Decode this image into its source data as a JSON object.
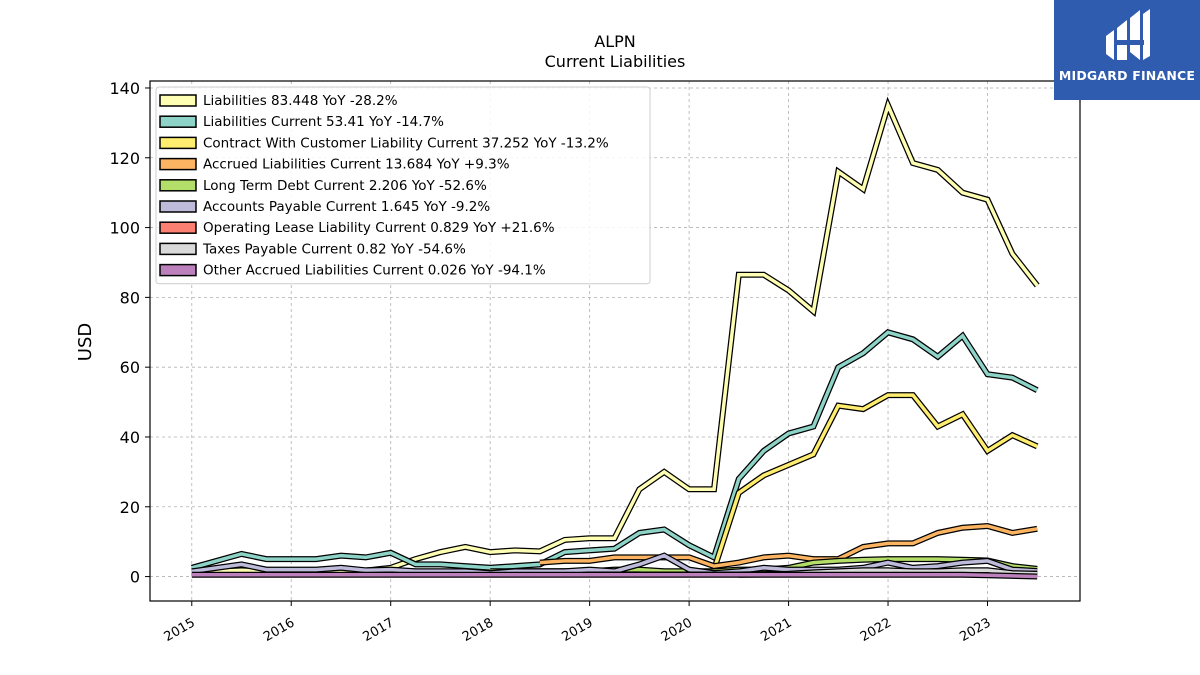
{
  "brand": {
    "name": "MIDGARD FINANCE"
  },
  "chart_data": {
    "type": "line",
    "title": "ALPN",
    "subtitle": "Current  Liabilities",
    "ylabel": "USD",
    "xlabel": "",
    "ylim": [
      -7,
      142
    ],
    "xlim": [
      2014.58,
      2023.93
    ],
    "yticks": [
      0,
      20,
      40,
      60,
      80,
      100,
      120,
      140
    ],
    "xticks": [
      2015,
      2016,
      2017,
      2018,
      2019,
      2020,
      2021,
      2022,
      2023
    ],
    "grid": true,
    "legend_position": "top-left",
    "x": [
      2015.0,
      2015.5,
      2015.75,
      2016.25,
      2016.5,
      2016.75,
      2017.0,
      2017.25,
      2017.5,
      2017.75,
      2018.0,
      2018.25,
      2018.5,
      2018.75,
      2019.0,
      2019.25,
      2019.5,
      2019.75,
      2020.0,
      2020.25,
      2020.5,
      2020.75,
      2021.0,
      2021.25,
      2021.5,
      2021.75,
      2022.0,
      2022.25,
      2022.5,
      2022.75,
      2023.0,
      2023.25,
      2023.5
    ],
    "series": [
      {
        "name": "Liabilities  83.448 YoY -28.2%",
        "color": "#ffffb3",
        "values": [
          1.2,
          1.8,
          1.5,
          1.6,
          1.8,
          1.7,
          2.5,
          5.0,
          7.0,
          8.5,
          7.0,
          7.5,
          7.2,
          10.5,
          11.0,
          11.0,
          25.0,
          30.0,
          25.0,
          25.0,
          86.5,
          86.5,
          82.0,
          76.0,
          116.0,
          111.0,
          135.0,
          118.5,
          116.5,
          110.0,
          108.0,
          92.5,
          83.4
        ]
      },
      {
        "name": "Liabilities Current  53.41 YoY -14.7%",
        "color": "#8dd3c7",
        "values": [
          2.5,
          6.5,
          5.0,
          5.0,
          6.0,
          5.5,
          6.8,
          3.5,
          3.5,
          3.0,
          2.5,
          3.0,
          3.5,
          7.0,
          7.5,
          8.0,
          12.5,
          13.5,
          9.0,
          5.5,
          28.0,
          36.0,
          41.0,
          43.0,
          60.0,
          64.0,
          70.0,
          68.0,
          63.0,
          69.0,
          58.0,
          57.0,
          53.4
        ]
      },
      {
        "name": "Contract With Customer Liability Current  37.252 YoY -13.2%",
        "color": "#ffed6f",
        "values": [
          null,
          null,
          null,
          null,
          null,
          null,
          null,
          null,
          null,
          null,
          null,
          null,
          null,
          null,
          null,
          null,
          null,
          null,
          null,
          2.0,
          24.0,
          29.0,
          32.0,
          35.0,
          49.0,
          48.0,
          52.0,
          52.0,
          43.0,
          46.5,
          36.0,
          40.5,
          37.3
        ]
      },
      {
        "name": "Accrued Liabilities Current  13.684 YoY +9.3%",
        "color": "#fdb462",
        "values": [
          null,
          null,
          null,
          null,
          null,
          null,
          null,
          null,
          null,
          null,
          null,
          null,
          4.0,
          4.5,
          4.5,
          5.5,
          5.5,
          5.5,
          5.5,
          3.0,
          4.0,
          5.5,
          6.0,
          5.0,
          5.0,
          8.5,
          9.5,
          9.5,
          12.5,
          14.0,
          14.5,
          12.5,
          13.7
        ]
      },
      {
        "name": "Long Term Debt Current  2.206 YoY -52.6%",
        "color": "#b3de69",
        "values": [
          null,
          null,
          null,
          null,
          null,
          null,
          null,
          null,
          null,
          null,
          1.5,
          1.5,
          1.5,
          1.5,
          1.5,
          2.0,
          2.0,
          1.5,
          1.5,
          1.5,
          2.0,
          2.0,
          2.5,
          4.0,
          4.5,
          4.8,
          5.0,
          5.0,
          5.0,
          4.8,
          4.6,
          3.0,
          2.2
        ]
      },
      {
        "name": "Accounts Payable Current  1.645 YoY -9.2%",
        "color": "#bebada",
        "values": [
          1.5,
          3.5,
          2.0,
          2.0,
          2.5,
          1.8,
          2.0,
          1.5,
          1.5,
          1.5,
          1.0,
          1.5,
          1.5,
          1.5,
          2.0,
          1.5,
          3.5,
          6.0,
          2.0,
          1.0,
          1.5,
          2.5,
          2.0,
          2.0,
          2.0,
          2.5,
          4.0,
          2.5,
          3.0,
          4.0,
          4.5,
          2.0,
          1.6
        ]
      },
      {
        "name": "Operating Lease Liability Current  0.829 YoY +21.6%",
        "color": "#fb8072",
        "values": [
          null,
          null,
          null,
          null,
          null,
          null,
          null,
          null,
          null,
          null,
          null,
          null,
          null,
          null,
          0.6,
          0.6,
          0.6,
          0.6,
          0.6,
          0.6,
          0.6,
          0.7,
          0.7,
          0.7,
          0.7,
          0.7,
          0.7,
          0.7,
          0.7,
          0.7,
          0.7,
          0.8,
          0.8
        ]
      },
      {
        "name": "Taxes Payable Current  0.82 YoY -54.6%",
        "color": "#d9d9d9",
        "values": [
          null,
          null,
          null,
          null,
          null,
          null,
          null,
          null,
          null,
          null,
          null,
          null,
          null,
          null,
          null,
          null,
          null,
          null,
          null,
          null,
          0.5,
          0.6,
          0.8,
          1.2,
          1.5,
          1.8,
          1.8,
          1.5,
          1.5,
          1.8,
          1.8,
          1.0,
          0.8
        ]
      },
      {
        "name": "Other Accrued Liabilities Current  0.026 YoY -94.1%",
        "color": "#bc80bd",
        "values": [
          0.5,
          0.5,
          0.5,
          0.5,
          0.5,
          0.5,
          0.5,
          0.5,
          0.5,
          0.5,
          0.5,
          0.5,
          0.5,
          0.5,
          0.5,
          0.5,
          0.5,
          0.5,
          0.5,
          0.5,
          0.5,
          0.5,
          0.5,
          0.5,
          0.5,
          0.5,
          0.5,
          0.5,
          0.5,
          0.5,
          0.4,
          0.2,
          0.03
        ]
      }
    ]
  }
}
